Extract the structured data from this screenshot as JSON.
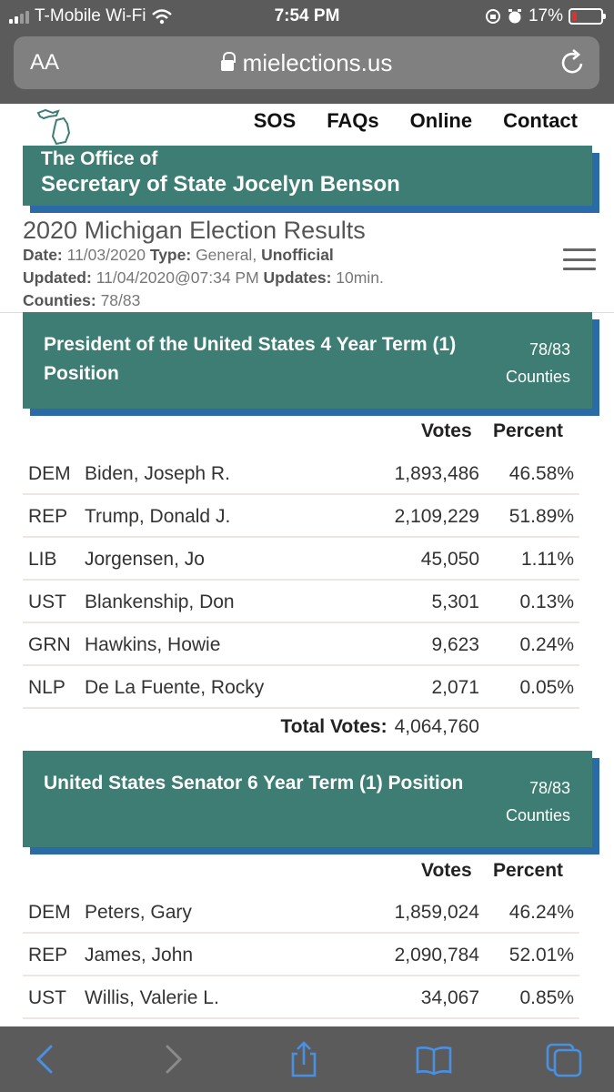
{
  "status_bar": {
    "carrier": "T-Mobile Wi-Fi",
    "time": "7:54 PM",
    "battery": "17%"
  },
  "browser": {
    "aa_label": "AA",
    "url": "mielections.us"
  },
  "nav": {
    "items": [
      "SOS",
      "FAQs",
      "Online",
      "Contact"
    ]
  },
  "banner": {
    "line1": "The Office of",
    "line2": "Secretary of State Jocelyn Benson"
  },
  "page": {
    "title": "2020 Michigan Election Results",
    "date_label": "Date:",
    "date": "11/03/2020",
    "type_label": "Type:",
    "type": "General,",
    "unofficial": "Unofficial",
    "updated_label": "Updated:",
    "updated": "11/04/2020@07:34 PM",
    "updates_label": "Updates:",
    "updates": "10min.",
    "counties_label": "Counties:",
    "counties": "78/83"
  },
  "races": [
    {
      "name": "President of the United States 4 Year Term (1) Position",
      "counties_count": "78/83",
      "counties_word": "Counties",
      "votes_header": "Votes",
      "percent_header": "Percent",
      "rows": [
        {
          "party": "DEM",
          "candidate": "Biden, Joseph R.",
          "votes": "1,893,486",
          "percent": "46.58%"
        },
        {
          "party": "REP",
          "candidate": "Trump, Donald J.",
          "votes": "2,109,229",
          "percent": "51.89%"
        },
        {
          "party": "LIB",
          "candidate": "Jorgensen, Jo",
          "votes": "45,050",
          "percent": "1.11%"
        },
        {
          "party": "UST",
          "candidate": "Blankenship, Don",
          "votes": "5,301",
          "percent": "0.13%"
        },
        {
          "party": "GRN",
          "candidate": "Hawkins, Howie",
          "votes": "9,623",
          "percent": "0.24%"
        },
        {
          "party": "NLP",
          "candidate": "De La Fuente, Rocky",
          "votes": "2,071",
          "percent": "0.05%"
        }
      ],
      "total_label": "Total Votes:",
      "total_votes": "4,064,760"
    },
    {
      "name": "United States Senator 6 Year Term (1) Position",
      "counties_count": "78/83",
      "counties_word": "Counties",
      "votes_header": "Votes",
      "percent_header": "Percent",
      "rows": [
        {
          "party": "DEM",
          "candidate": "Peters, Gary",
          "votes": "1,859,024",
          "percent": "46.24%"
        },
        {
          "party": "REP",
          "candidate": "James, John",
          "votes": "2,090,784",
          "percent": "52.01%"
        },
        {
          "party": "UST",
          "candidate": "Willis, Valerie L.",
          "votes": "34,067",
          "percent": "0.85%"
        }
      ]
    }
  ],
  "toolbar": {
    "icons": [
      "back-icon",
      "forward-icon",
      "share-icon",
      "bookmarks-icon",
      "tabs-icon"
    ]
  },
  "colors": {
    "banner": "#3d7d73",
    "banner_shadow": "#2a6aa6",
    "chrome": "#5b5b5b",
    "toolbar_icon": "#4a90e2"
  }
}
